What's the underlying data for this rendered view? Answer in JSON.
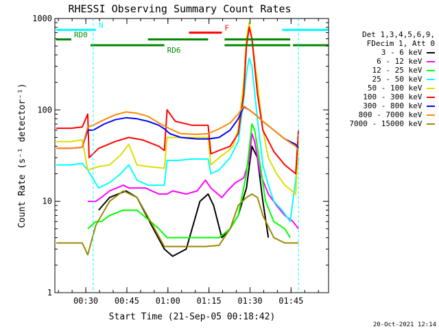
{
  "chart_data": {
    "type": "line",
    "title": "RHESSI Observing Summary Count Rates",
    "xlabel": "Start Time (21-Sep-05 00:18:42)",
    "ylabel": "Count Rate (s⁻¹ detector⁻¹)",
    "yscale": "log",
    "ylim": [
      1,
      1000
    ],
    "xlim_minutes": [
      0,
      100
    ],
    "x_ticks": [
      {
        "label": "00:30",
        "t": 11.3
      },
      {
        "label": "00:45",
        "t": 26.3
      },
      {
        "label": "01:00",
        "t": 41.3
      },
      {
        "label": "01:15",
        "t": 56.3
      },
      {
        "label": "01:30",
        "t": 71.3
      },
      {
        "label": "01:45",
        "t": 86.3
      }
    ],
    "y_ticks": [
      {
        "label": "1",
        "value": 1
      },
      {
        "label": "10",
        "value": 10
      },
      {
        "label": "100",
        "value": 100
      },
      {
        "label": "1000",
        "value": 1000
      }
    ],
    "legend_header": [
      "Det 1,3,4,5,6,9,",
      "FDecim 1, Att 0"
    ],
    "series": [
      {
        "name": "3 - 6 keV",
        "color": "#000000",
        "points": [
          [
            0.5,
            null
          ],
          [
            13,
            2.2
          ],
          [
            15,
            null
          ],
          [
            16,
            8
          ],
          [
            20,
            11
          ],
          [
            26,
            13
          ],
          [
            30,
            11
          ],
          [
            36,
            5
          ],
          [
            40,
            3
          ],
          [
            43,
            2.5
          ],
          [
            48,
            3
          ],
          [
            53,
            10
          ],
          [
            56,
            12
          ],
          [
            58,
            9
          ],
          [
            61,
            4
          ],
          [
            64,
            5
          ],
          [
            67,
            7
          ],
          [
            70,
            14
          ],
          [
            72,
            40
          ],
          [
            74,
            30
          ],
          [
            76,
            10
          ],
          [
            78,
            4
          ],
          [
            79,
            null
          ]
        ]
      },
      {
        "name": "6 - 12 keV",
        "color": "#ff00ff",
        "points": [
          [
            12,
            10
          ],
          [
            15,
            10
          ],
          [
            17,
            11
          ],
          [
            20,
            13
          ],
          [
            25,
            15
          ],
          [
            27,
            14
          ],
          [
            30,
            14
          ],
          [
            33,
            14
          ],
          [
            38,
            12
          ],
          [
            41,
            12
          ],
          [
            43,
            13
          ],
          [
            48,
            12
          ],
          [
            52,
            13
          ],
          [
            55,
            17
          ],
          [
            57,
            14
          ],
          [
            61,
            11
          ],
          [
            63,
            13
          ],
          [
            66,
            16
          ],
          [
            69,
            18
          ],
          [
            71,
            28
          ],
          [
            72,
            55
          ],
          [
            73,
            45
          ],
          [
            75,
            20
          ],
          [
            78,
            12
          ],
          [
            81,
            9
          ],
          [
            84,
            7
          ],
          [
            87,
            6
          ],
          [
            89,
            5
          ]
        ]
      },
      {
        "name": "12 - 25 keV",
        "color": "#00ff00",
        "points": [
          [
            12,
            5
          ],
          [
            15,
            6
          ],
          [
            17,
            6
          ],
          [
            20,
            7
          ],
          [
            25,
            8
          ],
          [
            30,
            8
          ],
          [
            35,
            6
          ],
          [
            38,
            5
          ],
          [
            41,
            4
          ],
          [
            44,
            4
          ],
          [
            48,
            4
          ],
          [
            52,
            4
          ],
          [
            56,
            4
          ],
          [
            60,
            4
          ],
          [
            64,
            5
          ],
          [
            67,
            7
          ],
          [
            70,
            20
          ],
          [
            72,
            70
          ],
          [
            73,
            60
          ],
          [
            75,
            25
          ],
          [
            77,
            10
          ],
          [
            80,
            6
          ],
          [
            84,
            5
          ],
          [
            86,
            4
          ]
        ]
      },
      {
        "name": "25 - 50 keV",
        "color": "#00ffff",
        "points": [
          [
            0.5,
            25
          ],
          [
            6,
            25
          ],
          [
            10,
            26
          ],
          [
            12,
            22
          ],
          [
            16,
            14
          ],
          [
            20,
            16
          ],
          [
            24,
            20
          ],
          [
            27,
            25
          ],
          [
            30,
            17
          ],
          [
            34,
            15
          ],
          [
            40,
            15
          ],
          [
            41,
            28
          ],
          [
            45,
            28
          ],
          [
            50,
            29
          ],
          [
            54,
            29
          ],
          [
            56,
            29
          ],
          [
            57,
            20
          ],
          [
            60,
            22
          ],
          [
            64,
            30
          ],
          [
            67,
            45
          ],
          [
            69,
            130
          ],
          [
            70,
            250
          ],
          [
            71,
            370
          ],
          [
            72,
            300
          ],
          [
            74,
            80
          ],
          [
            76,
            25
          ],
          [
            78,
            15
          ],
          [
            80,
            10
          ],
          [
            83,
            8
          ],
          [
            86,
            6
          ],
          [
            89,
            30
          ]
        ]
      },
      {
        "name": "50 - 100 keV",
        "color": "#dddd00",
        "points": [
          [
            0.5,
            45
          ],
          [
            6,
            45
          ],
          [
            10,
            47
          ],
          [
            12,
            22
          ],
          [
            16,
            24
          ],
          [
            20,
            25
          ],
          [
            24,
            32
          ],
          [
            27,
            42
          ],
          [
            30,
            25
          ],
          [
            34,
            24
          ],
          [
            40,
            23
          ],
          [
            41,
            50
          ],
          [
            45,
            50
          ],
          [
            50,
            50
          ],
          [
            56,
            50
          ],
          [
            57,
            25
          ],
          [
            60,
            30
          ],
          [
            63,
            35
          ],
          [
            65,
            40
          ],
          [
            67,
            60
          ],
          [
            69,
            200
          ],
          [
            70,
            600
          ],
          [
            71,
            900
          ],
          [
            72,
            600
          ],
          [
            74,
            200
          ],
          [
            76,
            60
          ],
          [
            78,
            30
          ],
          [
            81,
            20
          ],
          [
            84,
            15
          ],
          [
            88,
            12
          ],
          [
            89,
            45
          ]
        ]
      },
      {
        "name": "100 - 300 keV",
        "color": "#ff0000",
        "points": [
          [
            0.5,
            63
          ],
          [
            6,
            63
          ],
          [
            10,
            65
          ],
          [
            12,
            90
          ],
          [
            12.5,
            30
          ],
          [
            16,
            38
          ],
          [
            22,
            45
          ],
          [
            27,
            50
          ],
          [
            32,
            47
          ],
          [
            38,
            40
          ],
          [
            40,
            36
          ],
          [
            41,
            100
          ],
          [
            44,
            75
          ],
          [
            50,
            68
          ],
          [
            56,
            68
          ],
          [
            57,
            33
          ],
          [
            60,
            36
          ],
          [
            64,
            40
          ],
          [
            67,
            55
          ],
          [
            69,
            150
          ],
          [
            70,
            500
          ],
          [
            71,
            800
          ],
          [
            72,
            600
          ],
          [
            74,
            150
          ],
          [
            76,
            60
          ],
          [
            80,
            35
          ],
          [
            84,
            25
          ],
          [
            88,
            20
          ],
          [
            89,
            60
          ]
        ]
      },
      {
        "name": "300 - 800 keV",
        "color": "#0000ff",
        "points": [
          [
            0.5,
            38
          ],
          [
            6,
            38
          ],
          [
            10,
            39
          ],
          [
            12,
            60
          ],
          [
            14,
            60
          ],
          [
            18,
            70
          ],
          [
            22,
            78
          ],
          [
            26,
            82
          ],
          [
            30,
            80
          ],
          [
            34,
            75
          ],
          [
            38,
            68
          ],
          [
            40,
            62
          ],
          [
            42,
            55
          ],
          [
            46,
            50
          ],
          [
            52,
            48
          ],
          [
            56,
            48
          ],
          [
            60,
            50
          ],
          [
            64,
            60
          ],
          [
            67,
            80
          ],
          [
            69,
            108
          ],
          [
            71,
            100
          ],
          [
            73,
            90
          ],
          [
            76,
            75
          ],
          [
            80,
            60
          ],
          [
            84,
            48
          ],
          [
            88,
            42
          ],
          [
            89,
            38
          ]
        ]
      },
      {
        "name": "800 - 7000 keV",
        "color": "#ff8800",
        "points": [
          [
            0.5,
            38
          ],
          [
            6,
            38
          ],
          [
            10,
            39
          ],
          [
            12,
            65
          ],
          [
            14,
            68
          ],
          [
            18,
            78
          ],
          [
            22,
            88
          ],
          [
            26,
            95
          ],
          [
            30,
            92
          ],
          [
            34,
            85
          ],
          [
            38,
            72
          ],
          [
            42,
            62
          ],
          [
            46,
            55
          ],
          [
            52,
            54
          ],
          [
            56,
            55
          ],
          [
            60,
            62
          ],
          [
            64,
            72
          ],
          [
            67,
            90
          ],
          [
            69,
            110
          ],
          [
            71,
            100
          ],
          [
            73,
            90
          ],
          [
            76,
            75
          ],
          [
            80,
            60
          ],
          [
            84,
            48
          ],
          [
            88,
            40
          ],
          [
            89,
            36
          ]
        ]
      },
      {
        "name": "7000 - 15000 keV",
        "color": "#998800",
        "points": [
          [
            0.5,
            3.5
          ],
          [
            5,
            3.5
          ],
          [
            10,
            3.5
          ],
          [
            12,
            2.6
          ],
          [
            15,
            5.5
          ],
          [
            20,
            10
          ],
          [
            25,
            13
          ],
          [
            30,
            11
          ],
          [
            35,
            6
          ],
          [
            40,
            3.2
          ],
          [
            45,
            3.2
          ],
          [
            50,
            3.2
          ],
          [
            55,
            3.2
          ],
          [
            60,
            3.3
          ],
          [
            64,
            5
          ],
          [
            67,
            9
          ],
          [
            70,
            11
          ],
          [
            72,
            12
          ],
          [
            74,
            11
          ],
          [
            76,
            7
          ],
          [
            80,
            4
          ],
          [
            84,
            3.5
          ],
          [
            89,
            3.5
          ]
        ]
      }
    ],
    "annotations": [
      {
        "label": "N",
        "color": "#00ffff",
        "y": 750,
        "spans": [
          [
            0.5,
            15
          ],
          [
            83,
            100
          ]
        ]
      },
      {
        "label": "F",
        "color": "#ff0000",
        "y": 700,
        "spans": [
          [
            49,
            61
          ]
        ]
      },
      {
        "label": "RD0",
        "color": "#008800",
        "y": 590,
        "spans": [
          [
            0.5,
            6
          ],
          [
            34,
            56
          ],
          [
            62,
            86
          ]
        ]
      },
      {
        "label": "RD6",
        "color": "#008800",
        "y": 510,
        "spans": [
          [
            13,
            40
          ],
          [
            62,
            86
          ],
          [
            87,
            100
          ]
        ]
      }
    ],
    "saa_markers_minutes": [
      14,
      89
    ]
  },
  "footer": {
    "timestamp": "20-Oct-2021 12:14"
  }
}
